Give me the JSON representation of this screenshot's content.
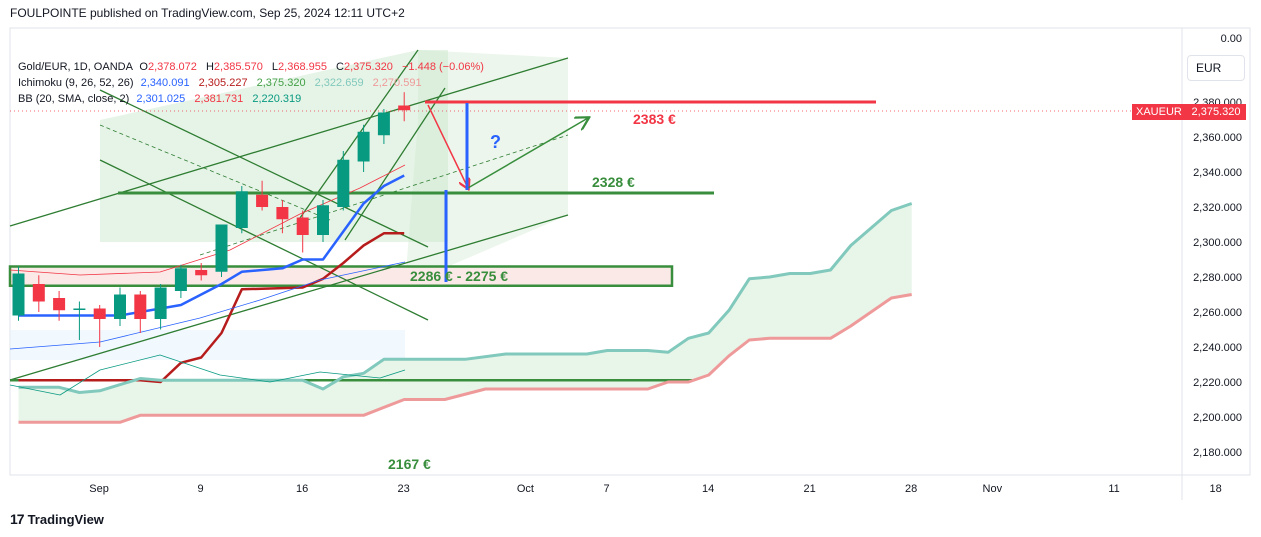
{
  "header": "FOULPOINTE published on TradingView.com, Sep 25, 2024 12:11 UTC+2",
  "currency_button": "EUR",
  "price_tag": {
    "symbol": "XAUEUR",
    "value": "2,375.320",
    "color": "#f23645"
  },
  "footer": {
    "logo": "17",
    "brand": "TradingView"
  },
  "legend": {
    "line1": {
      "label": "Gold/EUR, 1D, OANDA",
      "o_key": "O",
      "o": "2,378.072",
      "h_key": "H",
      "h": "2,385.570",
      "l_key": "L",
      "l": "2,368.955",
      "c_key": "C",
      "c": "2,375.320",
      "chg": "−1.448 (−0.06%)"
    },
    "line2": {
      "label": "Ichimoku (9, 26, 52, 26)",
      "v1": "2,340.091",
      "v2": "2,305.227",
      "v3": "2,375.320",
      "v4": "2,322.659",
      "v5": "2,270.591"
    },
    "line3": {
      "label": "BB (20, SMA, close, 2)",
      "v1": "2,301.025",
      "v2": "2,381.731",
      "v3": "2,220.319"
    }
  },
  "colors": {
    "up": "#089981",
    "down": "#f23645",
    "tenkan": "#2962ff",
    "kijun": "#b71c1c",
    "spanA": "#81c9bc",
    "spanB": "#ef9a9a",
    "lagging": "#43a047",
    "bb": "#2962ff",
    "level_red": "#f23645",
    "level_green": "#388e3c",
    "zone_fill": "#fbe9e7"
  },
  "chart_data": {
    "type": "candlestick",
    "title": "Gold/EUR, 1D, OANDA",
    "ylim": [
      2170,
      2440
    ],
    "y_ticks": [
      "0.00",
      "2,380.000",
      "2,360.000",
      "2,340.000",
      "2,320.000",
      "2,300.000",
      "2,280.000",
      "2,260.000",
      "2,240.000",
      "2,220.000",
      "2,200.000",
      "2,180.000"
    ],
    "x_ticks": [
      {
        "label": "Sep",
        "idx": 2
      },
      {
        "label": "9",
        "idx": 7
      },
      {
        "label": "16",
        "idx": 12
      },
      {
        "label": "23",
        "idx": 17
      },
      {
        "label": "Oct",
        "idx": 23
      },
      {
        "label": "7",
        "idx": 27
      },
      {
        "label": "14",
        "idx": 32
      },
      {
        "label": "21",
        "idx": 37
      },
      {
        "label": "28",
        "idx": 42
      },
      {
        "label": "Nov",
        "idx": 46
      },
      {
        "label": "11",
        "idx": 52
      },
      {
        "label": "18",
        "idx": 57
      }
    ],
    "candles": [
      {
        "i": 0,
        "o": 2258,
        "h": 2286,
        "l": 2255,
        "c": 2282
      },
      {
        "i": 1,
        "o": 2276,
        "h": 2281,
        "l": 2260,
        "c": 2266
      },
      {
        "i": 2,
        "o": 2268,
        "h": 2272,
        "l": 2255,
        "c": 2261
      },
      {
        "i": 3,
        "o": 2262,
        "h": 2266,
        "l": 2244,
        "c": 2262
      },
      {
        "i": 4,
        "o": 2262,
        "h": 2264,
        "l": 2240,
        "c": 2256
      },
      {
        "i": 5,
        "o": 2256,
        "h": 2274,
        "l": 2252,
        "c": 2270
      },
      {
        "i": 6,
        "o": 2270,
        "h": 2272,
        "l": 2248,
        "c": 2256
      },
      {
        "i": 7,
        "o": 2256,
        "h": 2276,
        "l": 2250,
        "c": 2274
      },
      {
        "i": 8,
        "o": 2272,
        "h": 2287,
        "l": 2268,
        "c": 2285
      },
      {
        "i": 9,
        "o": 2284,
        "h": 2288,
        "l": 2278,
        "c": 2281
      },
      {
        "i": 10,
        "o": 2283,
        "h": 2310,
        "l": 2280,
        "c": 2310
      },
      {
        "i": 11,
        "o": 2308,
        "h": 2332,
        "l": 2305,
        "c": 2329
      },
      {
        "i": 12,
        "o": 2327,
        "h": 2335,
        "l": 2318,
        "c": 2320
      },
      {
        "i": 13,
        "o": 2320,
        "h": 2324,
        "l": 2305,
        "c": 2313
      },
      {
        "i": 14,
        "o": 2314,
        "h": 2318,
        "l": 2294,
        "c": 2304
      },
      {
        "i": 15,
        "o": 2304,
        "h": 2324,
        "l": 2300,
        "c": 2321
      },
      {
        "i": 16,
        "o": 2320,
        "h": 2352,
        "l": 2318,
        "c": 2347
      },
      {
        "i": 17,
        "o": 2346,
        "h": 2367,
        "l": 2340,
        "c": 2363
      },
      {
        "i": 18,
        "o": 2361,
        "h": 2376,
        "l": 2356,
        "c": 2374
      },
      {
        "i": 19,
        "o": 2378,
        "h": 2385.6,
        "l": 2369,
        "c": 2375.3
      }
    ],
    "series": [
      {
        "name": "Tenkan",
        "color": "#2962ff",
        "points": [
          [
            0,
            2258
          ],
          [
            5,
            2258
          ],
          [
            8,
            2264
          ],
          [
            10,
            2276
          ],
          [
            11,
            2283
          ],
          [
            13,
            2285
          ],
          [
            14,
            2290
          ],
          [
            15,
            2290
          ],
          [
            16,
            2306
          ],
          [
            17,
            2322
          ],
          [
            18,
            2332
          ],
          [
            19,
            2338
          ]
        ]
      },
      {
        "name": "Kijun",
        "color": "#b71c1c",
        "points": [
          [
            0,
            2221
          ],
          [
            6,
            2221
          ],
          [
            7,
            2220
          ],
          [
            8,
            2231
          ],
          [
            9,
            2234
          ],
          [
            10,
            2248
          ],
          [
            11,
            2273
          ],
          [
            14,
            2274
          ],
          [
            15,
            2279
          ],
          [
            16,
            2288
          ],
          [
            17,
            2298
          ],
          [
            18,
            2305
          ],
          [
            19,
            2305
          ]
        ]
      },
      {
        "name": "Span A",
        "color": "#81c9bc",
        "points": [
          [
            0,
            2217
          ],
          [
            2,
            2217
          ],
          [
            3,
            2214
          ],
          [
            4,
            2215
          ],
          [
            6,
            2222
          ],
          [
            7,
            2221
          ],
          [
            14,
            2221
          ],
          [
            15,
            2216
          ],
          [
            16,
            2223
          ],
          [
            17,
            2225
          ],
          [
            18,
            2233
          ],
          [
            22,
            2233
          ],
          [
            24,
            2236
          ],
          [
            28,
            2236
          ],
          [
            29,
            2238
          ],
          [
            31,
            2238
          ],
          [
            32,
            2237
          ],
          [
            33,
            2245
          ],
          [
            34,
            2248
          ],
          [
            35,
            2261
          ],
          [
            36,
            2279
          ],
          [
            37,
            2280
          ],
          [
            38,
            2282
          ],
          [
            39,
            2282
          ],
          [
            40,
            2284
          ],
          [
            41,
            2298
          ],
          [
            42,
            2308
          ],
          [
            43,
            2318
          ],
          [
            44,
            2322
          ]
        ]
      },
      {
        "name": "Span B",
        "color": "#ef9a9a",
        "points": [
          [
            0,
            2197
          ],
          [
            5,
            2197
          ],
          [
            6,
            2201
          ],
          [
            17,
            2201
          ],
          [
            19,
            2210
          ],
          [
            21,
            2210
          ],
          [
            23,
            2216
          ],
          [
            31,
            2216
          ],
          [
            32,
            2220
          ],
          [
            33,
            2220
          ],
          [
            34,
            2224
          ],
          [
            35,
            2235
          ],
          [
            36,
            2244
          ],
          [
            37,
            2245
          ],
          [
            40,
            2245
          ],
          [
            41,
            2252
          ],
          [
            43,
            2268
          ],
          [
            44,
            2270
          ]
        ]
      }
    ],
    "annotations": [
      {
        "text": "2383 €",
        "color": "#f23645"
      },
      {
        "text": "2328 €",
        "color": "#388e3c"
      },
      {
        "text": "2286 € - 2275 €",
        "color": "#388e3c"
      },
      {
        "text": "2167 €",
        "color": "#388e3c"
      },
      {
        "text": "?",
        "color": "#2962ff"
      }
    ]
  }
}
